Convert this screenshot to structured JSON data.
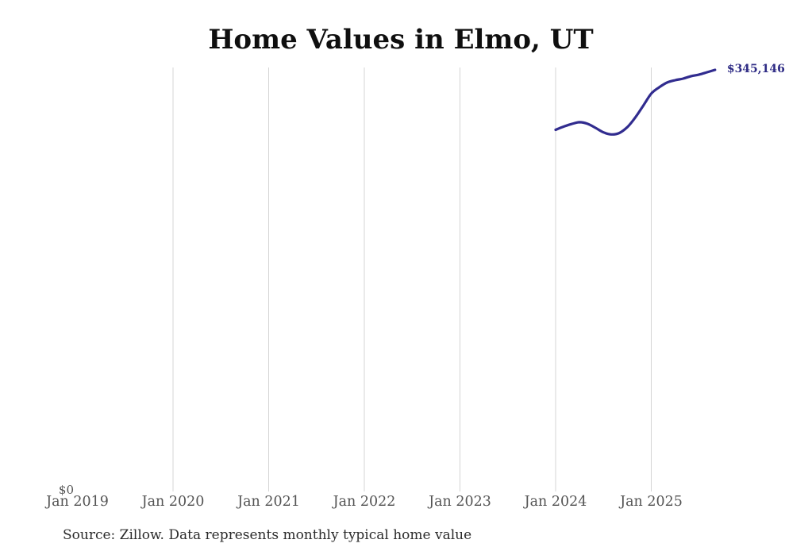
{
  "chart_data": {
    "type": "line",
    "title": "Home Values in Elmo, UT",
    "source_note": "Source: Zillow. Data represents monthly typical home value",
    "x_tick_labels": [
      "Jan 2019",
      "Jan 2020",
      "Jan 2021",
      "Jan 2022",
      "Jan 2023",
      "Jan 2024",
      "Jan 2025"
    ],
    "gridlines_at": [
      "Jan 2020",
      "Jan 2021",
      "Jan 2022",
      "Jan 2023",
      "Jan 2024",
      "Jan 2025"
    ],
    "grid": "vertical-only",
    "legend": "none",
    "y_zero_label": "$0",
    "end_value_label": "$345,146",
    "x_range": [
      "Jan 2019",
      "Oct 2025"
    ],
    "ylim": [
      0,
      346500
    ],
    "series": [
      {
        "name": "Monthly typical home value",
        "points": [
          {
            "month": "Jan 2024",
            "value": 296100
          },
          {
            "month": "Feb 2024",
            "value": 298700
          },
          {
            "month": "Mar 2024",
            "value": 300800
          },
          {
            "month": "Apr 2024",
            "value": 302300
          },
          {
            "month": "May 2024",
            "value": 301000
          },
          {
            "month": "Jun 2024",
            "value": 297700
          },
          {
            "month": "Jul 2024",
            "value": 294000
          },
          {
            "month": "Aug 2024",
            "value": 292300
          },
          {
            "month": "Sep 2024",
            "value": 293500
          },
          {
            "month": "Oct 2024",
            "value": 298300
          },
          {
            "month": "Nov 2024",
            "value": 306200
          },
          {
            "month": "Dec 2024",
            "value": 315900
          },
          {
            "month": "Jan 2025",
            "value": 325700
          },
          {
            "month": "Feb 2025",
            "value": 330900
          },
          {
            "month": "Mar 2025",
            "value": 334800
          },
          {
            "month": "Apr 2025",
            "value": 336700
          },
          {
            "month": "May 2025",
            "value": 338000
          },
          {
            "month": "Jun 2025",
            "value": 340000
          },
          {
            "month": "Jul 2025",
            "value": 341300
          },
          {
            "month": "Aug 2025",
            "value": 343200
          },
          {
            "month": "Sep 2025",
            "value": 345146
          }
        ]
      }
    ],
    "colors": {
      "line": "#312c8f",
      "end_label": "#2d2a84",
      "gridline": "#d4d4d4",
      "tick_text": "#545454",
      "title_text": "#0f0f0f",
      "source_text": "#2b2b2b"
    }
  }
}
